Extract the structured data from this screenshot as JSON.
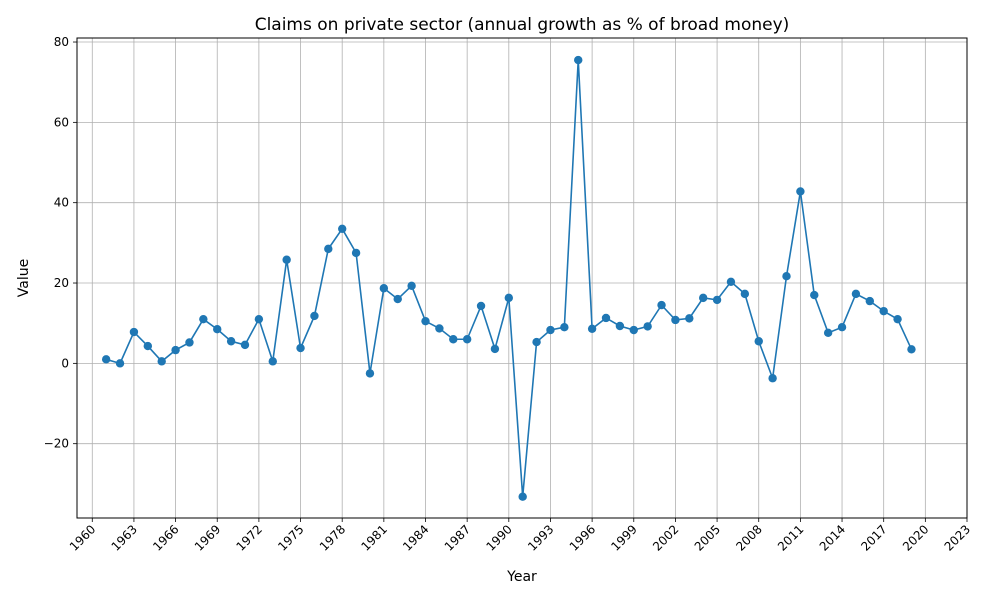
{
  "chart_data": {
    "type": "line",
    "title": "Claims on private sector (annual growth as % of broad money)",
    "xlabel": "Year",
    "ylabel": "Value",
    "xlim": [
      1958.9,
      2023
    ],
    "ylim": [
      -38.5,
      81
    ],
    "x_ticks": [
      1960,
      1963,
      1966,
      1969,
      1972,
      1975,
      1978,
      1981,
      1984,
      1987,
      1990,
      1993,
      1996,
      1999,
      2002,
      2005,
      2008,
      2011,
      2014,
      2017,
      2020,
      2023
    ],
    "y_ticks": [
      -20,
      0,
      20,
      40,
      60,
      80
    ],
    "grid": true,
    "color": "#1f77b4",
    "marker": "circle",
    "x": [
      1961,
      1962,
      1963,
      1964,
      1965,
      1966,
      1967,
      1968,
      1969,
      1970,
      1971,
      1972,
      1973,
      1974,
      1975,
      1976,
      1977,
      1978,
      1979,
      1980,
      1981,
      1982,
      1983,
      1984,
      1985,
      1986,
      1987,
      1988,
      1989,
      1990,
      1991,
      1992,
      1993,
      1994,
      1995,
      1996,
      1997,
      1998,
      1999,
      2000,
      2001,
      2002,
      2003,
      2004,
      2005,
      2006,
      2007,
      2008,
      2009,
      2010,
      2011,
      2012,
      2013,
      2014,
      2015,
      2016,
      2017,
      2018,
      2019
    ],
    "values": [
      1.0,
      0.0,
      7.8,
      4.3,
      0.5,
      3.3,
      5.2,
      11.0,
      8.5,
      5.5,
      4.6,
      11.0,
      0.5,
      25.8,
      3.8,
      11.8,
      28.5,
      33.5,
      27.5,
      -2.5,
      18.7,
      16.0,
      19.3,
      10.5,
      8.7,
      6.0,
      6.0,
      14.3,
      3.6,
      16.3,
      -33.2,
      5.3,
      8.3,
      9.0,
      75.5,
      8.6,
      11.3,
      9.3,
      8.3,
      9.2,
      14.5,
      10.8,
      11.2,
      16.3,
      15.8,
      20.3,
      17.3,
      5.5,
      -3.7,
      21.7,
      42.8,
      17.0,
      7.6,
      9.0,
      17.3,
      15.5,
      13.0,
      11.0,
      3.5
    ]
  }
}
